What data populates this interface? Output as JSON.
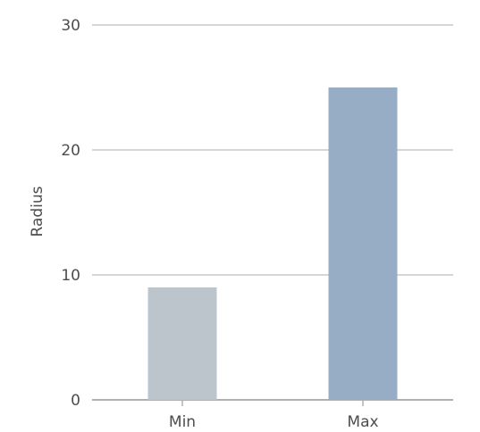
{
  "chart_data": {
    "type": "bar",
    "categories": [
      "Min",
      "Max"
    ],
    "values": [
      9,
      25
    ],
    "title": "",
    "xlabel": "",
    "ylabel": "Radius",
    "ylim": [
      0,
      30
    ],
    "yticks": [
      0,
      10,
      20,
      30
    ],
    "grid": true,
    "legend": "none",
    "bar_colors": [
      "#bcc4cc",
      "#97adc6"
    ],
    "gridline_color": "#c8c8c8",
    "axis_color": "#b0b0b0",
    "text_color": "#4d4d4d"
  }
}
